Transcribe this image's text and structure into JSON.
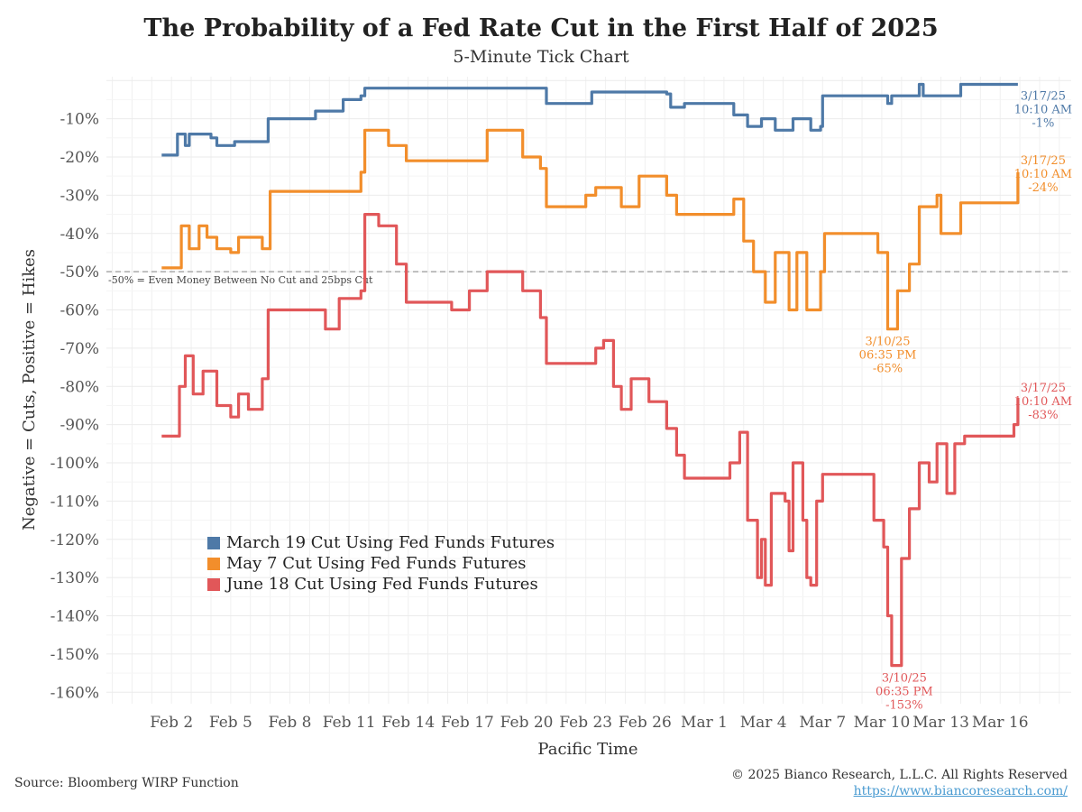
{
  "chart_data": {
    "type": "line",
    "title": "The Probability of a Fed Rate Cut in the First Half of 2025",
    "subtitle": "5-Minute Tick Chart",
    "xlabel": "Pacific Time",
    "ylabel": "Negative = Cuts, Positive = Hikes",
    "x_units": "days since Feb 2, 2025",
    "xlim": [
      -3.3,
      45.6
    ],
    "ylim": [
      -163,
      1
    ],
    "x_ticks": [
      {
        "day": 0,
        "label": "Feb 2"
      },
      {
        "day": 3,
        "label": "Feb 5"
      },
      {
        "day": 6,
        "label": "Feb 8"
      },
      {
        "day": 9,
        "label": "Feb 11"
      },
      {
        "day": 12,
        "label": "Feb 14"
      },
      {
        "day": 15,
        "label": "Feb 17"
      },
      {
        "day": 18,
        "label": "Feb 20"
      },
      {
        "day": 21,
        "label": "Feb 23"
      },
      {
        "day": 24,
        "label": "Feb 26"
      },
      {
        "day": 27,
        "label": "Mar 1"
      },
      {
        "day": 30,
        "label": "Mar 4"
      },
      {
        "day": 33,
        "label": "Mar 7"
      },
      {
        "day": 36,
        "label": "Mar 10"
      },
      {
        "day": 39,
        "label": "Mar 13"
      },
      {
        "day": 42,
        "label": "Mar 16"
      }
    ],
    "y_ticks": [
      {
        "v": -10,
        "label": "-10%"
      },
      {
        "v": -20,
        "label": "-20%"
      },
      {
        "v": -30,
        "label": "-30%"
      },
      {
        "v": -40,
        "label": "-40%"
      },
      {
        "v": -50,
        "label": "-50%"
      },
      {
        "v": -60,
        "label": "-60%"
      },
      {
        "v": -70,
        "label": "-70%"
      },
      {
        "v": -80,
        "label": "-80%"
      },
      {
        "v": -90,
        "label": "-90%"
      },
      {
        "v": -100,
        "label": "-100%"
      },
      {
        "v": -110,
        "label": "-110%"
      },
      {
        "v": -120,
        "label": "-120%"
      },
      {
        "v": -130,
        "label": "-130%"
      },
      {
        "v": -140,
        "label": "-140%"
      },
      {
        "v": -150,
        "label": "-150%"
      },
      {
        "v": -160,
        "label": "-160%"
      }
    ],
    "grid": true,
    "legend_position": "bottom-left",
    "reference_line": {
      "value": -50,
      "label": "-50% = Even Money Between No Cut and 25bps Cut"
    },
    "series": [
      {
        "name": "March 19 Cut Using Fed Funds Futures",
        "color": "#4e79a7",
        "points": [
          [
            -0.5,
            -19.5
          ],
          [
            0.2,
            -19.5
          ],
          [
            0.3,
            -14
          ],
          [
            0.7,
            -17
          ],
          [
            0.9,
            -14
          ],
          [
            2.0,
            -15
          ],
          [
            2.3,
            -17
          ],
          [
            3.2,
            -16
          ],
          [
            4.8,
            -16
          ],
          [
            4.9,
            -10
          ],
          [
            6.9,
            -10
          ],
          [
            7.3,
            -8
          ],
          [
            8.7,
            -5
          ],
          [
            9.6,
            -4
          ],
          [
            9.8,
            -2
          ],
          [
            19.0,
            -2
          ],
          [
            19.0,
            -6
          ],
          [
            21.2,
            -6
          ],
          [
            21.3,
            -3
          ],
          [
            25.1,
            -3.5
          ],
          [
            25.3,
            -7
          ],
          [
            26.0,
            -6
          ],
          [
            28.1,
            -6
          ],
          [
            28.5,
            -9
          ],
          [
            29.2,
            -12
          ],
          [
            29.9,
            -10
          ],
          [
            30.6,
            -13
          ],
          [
            31.5,
            -10
          ],
          [
            32.4,
            -13
          ],
          [
            32.9,
            -12
          ],
          [
            33.0,
            -4
          ],
          [
            36.1,
            -4
          ],
          [
            36.3,
            -6
          ],
          [
            36.5,
            -4
          ],
          [
            37.7,
            -4
          ],
          [
            37.9,
            -1
          ],
          [
            38.1,
            -4
          ],
          [
            39.7,
            -4
          ],
          [
            40.0,
            -1
          ],
          [
            42.9,
            -1
          ]
        ]
      },
      {
        "name": "May 7 Cut Using Fed Funds Futures",
        "color": "#f28e2b",
        "points": [
          [
            -0.5,
            -49
          ],
          [
            0.2,
            -49
          ],
          [
            0.5,
            -38
          ],
          [
            0.9,
            -44
          ],
          [
            1.4,
            -38
          ],
          [
            1.8,
            -41
          ],
          [
            2.3,
            -44
          ],
          [
            3.0,
            -45
          ],
          [
            3.4,
            -41
          ],
          [
            4.6,
            -44
          ],
          [
            5.0,
            -29
          ],
          [
            8.7,
            -29
          ],
          [
            9.6,
            -24
          ],
          [
            9.8,
            -13
          ],
          [
            11.0,
            -17
          ],
          [
            11.9,
            -21
          ],
          [
            15.1,
            -21
          ],
          [
            16.0,
            -13
          ],
          [
            17.6,
            -13
          ],
          [
            17.8,
            -20
          ],
          [
            18.7,
            -23
          ],
          [
            19.0,
            -33
          ],
          [
            21.0,
            -30
          ],
          [
            21.5,
            -28
          ],
          [
            22.8,
            -33
          ],
          [
            23.7,
            -25
          ],
          [
            25.1,
            -30
          ],
          [
            25.6,
            -35
          ],
          [
            26.9,
            -35
          ],
          [
            28.5,
            -31
          ],
          [
            29.0,
            -42
          ],
          [
            29.5,
            -50
          ],
          [
            30.1,
            -58
          ],
          [
            30.6,
            -45
          ],
          [
            31.3,
            -60
          ],
          [
            31.7,
            -45
          ],
          [
            32.2,
            -60
          ],
          [
            32.9,
            -50
          ],
          [
            33.1,
            -40
          ],
          [
            35.4,
            -40
          ],
          [
            35.8,
            -45
          ],
          [
            36.3,
            -65
          ],
          [
            36.8,
            -55
          ],
          [
            37.4,
            -48
          ],
          [
            37.9,
            -33
          ],
          [
            38.8,
            -30
          ],
          [
            39.0,
            -40
          ],
          [
            40.0,
            -32
          ],
          [
            42.5,
            -32
          ],
          [
            42.9,
            -24
          ]
        ]
      },
      {
        "name": "June 18 Cut Using Fed Funds Futures",
        "color": "#e15759",
        "points": [
          [
            -0.5,
            -93
          ],
          [
            0.2,
            -93
          ],
          [
            0.4,
            -80
          ],
          [
            0.7,
            -72
          ],
          [
            1.1,
            -82
          ],
          [
            1.6,
            -76
          ],
          [
            2.3,
            -85
          ],
          [
            3.0,
            -88
          ],
          [
            3.4,
            -82
          ],
          [
            3.9,
            -86
          ],
          [
            4.6,
            -78
          ],
          [
            4.9,
            -60
          ],
          [
            7.3,
            -60
          ],
          [
            7.8,
            -65
          ],
          [
            8.5,
            -57
          ],
          [
            9.6,
            -55
          ],
          [
            9.8,
            -35
          ],
          [
            10.5,
            -38
          ],
          [
            11.4,
            -48
          ],
          [
            11.9,
            -58
          ],
          [
            12.3,
            -58
          ],
          [
            14.2,
            -60
          ],
          [
            15.1,
            -55
          ],
          [
            16.0,
            -50
          ],
          [
            16.9,
            -50
          ],
          [
            17.8,
            -55
          ],
          [
            18.7,
            -62
          ],
          [
            19.0,
            -74
          ],
          [
            21.0,
            -74
          ],
          [
            21.5,
            -70
          ],
          [
            21.9,
            -68
          ],
          [
            22.4,
            -80
          ],
          [
            22.8,
            -86
          ],
          [
            23.3,
            -78
          ],
          [
            24.2,
            -84
          ],
          [
            25.1,
            -91
          ],
          [
            25.6,
            -98
          ],
          [
            26.0,
            -104
          ],
          [
            28.1,
            -104
          ],
          [
            28.3,
            -100
          ],
          [
            28.8,
            -92
          ],
          [
            29.2,
            -115
          ],
          [
            29.7,
            -130
          ],
          [
            29.9,
            -120
          ],
          [
            30.1,
            -132
          ],
          [
            30.4,
            -108
          ],
          [
            31.1,
            -110
          ],
          [
            31.3,
            -123
          ],
          [
            31.5,
            -100
          ],
          [
            32.0,
            -115
          ],
          [
            32.2,
            -130
          ],
          [
            32.4,
            -132
          ],
          [
            32.7,
            -110
          ],
          [
            33.0,
            -103
          ],
          [
            35.4,
            -103
          ],
          [
            35.6,
            -115
          ],
          [
            36.1,
            -122
          ],
          [
            36.3,
            -140
          ],
          [
            36.5,
            -153
          ],
          [
            37.0,
            -125
          ],
          [
            37.4,
            -112
          ],
          [
            37.9,
            -100
          ],
          [
            38.4,
            -105
          ],
          [
            38.8,
            -95
          ],
          [
            39.3,
            -108
          ],
          [
            39.7,
            -95
          ],
          [
            40.2,
            -93
          ],
          [
            42.2,
            -93
          ],
          [
            42.7,
            -90
          ],
          [
            42.9,
            -83
          ]
        ]
      }
    ],
    "annotations": [
      {
        "series": 0,
        "day": 42.9,
        "value": -1,
        "lines": [
          "3/17/25",
          "10:10 AM",
          "-1%"
        ]
      },
      {
        "series": 1,
        "day": 42.9,
        "value": -24,
        "lines": [
          "3/17/25",
          "10:10 AM",
          "-24%"
        ]
      },
      {
        "series": 2,
        "day": 42.9,
        "value": -83,
        "lines": [
          "3/17/25",
          "10:10 AM",
          "-83%"
        ]
      },
      {
        "series": 1,
        "day": 36.3,
        "value": -65,
        "lines": [
          "3/10/25",
          "06:35 PM",
          "-65%"
        ]
      },
      {
        "series": 2,
        "day": 36.5,
        "value": -153,
        "lines": [
          "3/10/25",
          "06:35 PM",
          "-153%"
        ]
      }
    ]
  },
  "footer": {
    "source": "Source: Bloomberg WIRP Function",
    "copyright": "© 2025 Bianco Research, L.L.C. All Rights Reserved",
    "link": "https://www.biancoresearch.com/"
  }
}
